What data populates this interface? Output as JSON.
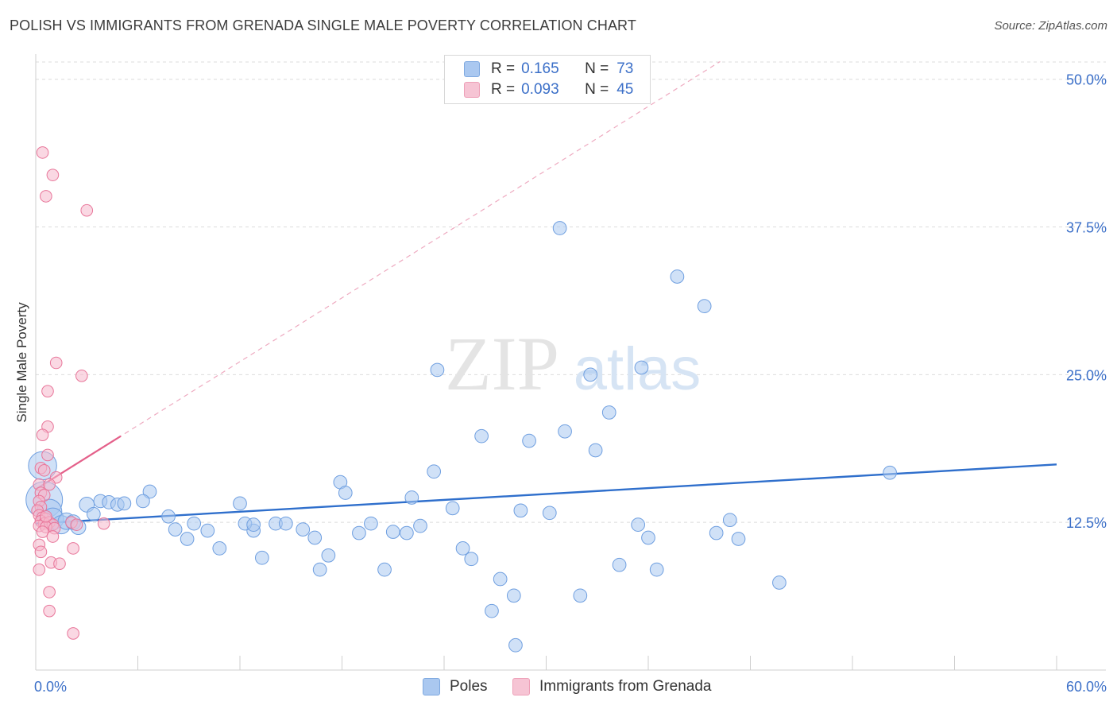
{
  "header": {
    "title": "POLISH VS IMMIGRANTS FROM GRENADA SINGLE MALE POVERTY CORRELATION CHART",
    "source": "Source: ZipAtlas.com"
  },
  "watermark": {
    "zip": "ZIP",
    "atlas": "atlas"
  },
  "legend_top": {
    "rows": [
      {
        "r_label": "R =",
        "r_value": "0.165",
        "n_label": "N =",
        "n_value": "73",
        "color": "#aac8f0"
      },
      {
        "r_label": "R =",
        "r_value": "0.093",
        "n_label": "N =",
        "n_value": "45",
        "color": "#f6b8cc"
      }
    ]
  },
  "legend_bottom": {
    "items": [
      {
        "label": "Poles",
        "color": "#aac8f0"
      },
      {
        "label": "Immigrants from Grenada",
        "color": "#f6b8cc"
      }
    ]
  },
  "chart_data": {
    "type": "scatter",
    "title": "POLISH VS IMMIGRANTS FROM GRENADA SINGLE MALE POVERTY CORRELATION CHART",
    "xlabel": "",
    "ylabel": "Single Male Poverty",
    "xlim": [
      0,
      60
    ],
    "ylim": [
      0,
      52
    ],
    "x_tick_labels": [
      "0.0%",
      "60.0%"
    ],
    "y_ticks": [
      12.5,
      25.0,
      37.5,
      50.0
    ],
    "y_tick_labels": [
      "12.5%",
      "25.0%",
      "37.5%",
      "50.0%"
    ],
    "grid": true,
    "legend_position": "top-center",
    "series": [
      {
        "name": "Poles",
        "color": "#6f9fe0",
        "fill": "#aac8f0",
        "r": 0.165,
        "n": 73,
        "trend": {
          "x": [
            0,
            60
          ],
          "y": [
            12.4,
            17.4
          ]
        },
        "points": [
          [
            0.4,
            17.3,
            1.7
          ],
          [
            0.5,
            14.4,
            2.2
          ],
          [
            0.8,
            13.4,
            1.5
          ],
          [
            1.0,
            12.8,
            1.3
          ],
          [
            1.5,
            12.3,
            1.1
          ],
          [
            1.8,
            12.6,
            1.0
          ],
          [
            2.2,
            12.5,
            0.9
          ],
          [
            2.5,
            12.1,
            0.9
          ],
          [
            3.0,
            14.0,
            0.9
          ],
          [
            3.4,
            13.2,
            0.8
          ],
          [
            3.8,
            14.3,
            0.8
          ],
          [
            4.3,
            14.2,
            0.8
          ],
          [
            4.8,
            14.0,
            0.8
          ],
          [
            5.2,
            14.1,
            0.8
          ],
          [
            6.7,
            15.1,
            0.8
          ],
          [
            6.3,
            14.3,
            0.8
          ],
          [
            7.8,
            13.0,
            0.8
          ],
          [
            8.2,
            11.9,
            0.8
          ],
          [
            8.9,
            11.1,
            0.8
          ],
          [
            9.3,
            12.4,
            0.8
          ],
          [
            10.1,
            11.8,
            0.8
          ],
          [
            10.8,
            10.3,
            0.8
          ],
          [
            12.0,
            14.1,
            0.8
          ],
          [
            12.8,
            11.8,
            0.8
          ],
          [
            14.1,
            12.4,
            0.8
          ],
          [
            12.3,
            12.4,
            0.8
          ],
          [
            12.8,
            12.3,
            0.8
          ],
          [
            13.3,
            9.5,
            0.8
          ],
          [
            14.7,
            12.4,
            0.8
          ],
          [
            15.7,
            11.9,
            0.8
          ],
          [
            16.4,
            11.2,
            0.8
          ],
          [
            16.7,
            8.5,
            0.8
          ],
          [
            17.2,
            9.7,
            0.8
          ],
          [
            17.9,
            15.9,
            0.8
          ],
          [
            18.2,
            15.0,
            0.8
          ],
          [
            19.0,
            11.6,
            0.8
          ],
          [
            19.7,
            12.4,
            0.8
          ],
          [
            20.5,
            8.5,
            0.8
          ],
          [
            21.0,
            11.7,
            0.8
          ],
          [
            22.1,
            14.6,
            0.8
          ],
          [
            22.6,
            12.2,
            0.8
          ],
          [
            23.6,
            25.4,
            0.8
          ],
          [
            23.4,
            16.8,
            0.8
          ],
          [
            24.5,
            13.7,
            0.8
          ],
          [
            25.1,
            10.3,
            0.8
          ],
          [
            25.6,
            9.4,
            0.8
          ],
          [
            26.2,
            19.8,
            0.8
          ],
          [
            26.8,
            5.0,
            0.8
          ],
          [
            27.3,
            7.7,
            0.8
          ],
          [
            28.1,
            6.3,
            0.8
          ],
          [
            28.5,
            13.5,
            0.8
          ],
          [
            29.0,
            19.4,
            0.8
          ],
          [
            30.2,
            13.3,
            0.8
          ],
          [
            30.8,
            37.4,
            0.8
          ],
          [
            31.1,
            20.2,
            0.8
          ],
          [
            32.0,
            6.3,
            0.8
          ],
          [
            32.6,
            25.0,
            0.8
          ],
          [
            32.9,
            18.6,
            0.8
          ],
          [
            34.3,
            8.9,
            0.8
          ],
          [
            33.7,
            21.8,
            0.8
          ],
          [
            35.6,
            25.6,
            0.8
          ],
          [
            35.4,
            12.3,
            0.8
          ],
          [
            36.0,
            11.2,
            0.8
          ],
          [
            36.5,
            8.5,
            0.8
          ],
          [
            37.7,
            33.3,
            0.8
          ],
          [
            39.3,
            30.8,
            0.8
          ],
          [
            40.0,
            11.6,
            0.8
          ],
          [
            40.8,
            12.7,
            0.8
          ],
          [
            41.3,
            11.1,
            0.8
          ],
          [
            43.7,
            7.4,
            0.8
          ],
          [
            50.2,
            16.7,
            0.8
          ],
          [
            28.2,
            2.1,
            0.8
          ],
          [
            21.8,
            11.6,
            0.8
          ]
        ]
      },
      {
        "name": "Immigrants from Grenada",
        "color": "#e8769a",
        "fill": "#f6b8cc",
        "r": 0.093,
        "n": 45,
        "trend": {
          "x": [
            0,
            5
          ],
          "y": [
            15.3,
            19.8
          ]
        },
        "trend_extended": {
          "x": [
            0,
            60
          ],
          "y": [
            15.3,
            69.3
          ]
        },
        "points": [
          [
            0.4,
            43.8,
            0.7
          ],
          [
            1.0,
            41.9,
            0.7
          ],
          [
            0.6,
            40.1,
            0.7
          ],
          [
            3.0,
            38.9,
            0.7
          ],
          [
            1.2,
            26.0,
            0.7
          ],
          [
            2.7,
            24.9,
            0.7
          ],
          [
            0.7,
            23.6,
            0.7
          ],
          [
            0.7,
            20.6,
            0.7
          ],
          [
            0.4,
            19.9,
            0.7
          ],
          [
            0.7,
            18.2,
            0.7
          ],
          [
            0.3,
            17.1,
            0.7
          ],
          [
            0.5,
            16.9,
            0.7
          ],
          [
            1.2,
            16.3,
            0.7
          ],
          [
            0.2,
            15.7,
            0.7
          ],
          [
            0.8,
            15.7,
            0.7
          ],
          [
            0.3,
            15.0,
            0.7
          ],
          [
            0.5,
            14.8,
            0.7
          ],
          [
            0.2,
            14.3,
            0.7
          ],
          [
            0.3,
            13.8,
            0.7
          ],
          [
            0.1,
            13.5,
            0.7
          ],
          [
            0.2,
            13.1,
            0.7
          ],
          [
            0.4,
            12.9,
            0.7
          ],
          [
            0.6,
            12.8,
            0.7
          ],
          [
            0.3,
            12.6,
            0.7
          ],
          [
            0.5,
            12.4,
            0.7
          ],
          [
            0.8,
            12.5,
            0.7
          ],
          [
            1.0,
            12.3,
            0.7
          ],
          [
            0.2,
            12.2,
            0.7
          ],
          [
            0.6,
            12.1,
            0.7
          ],
          [
            1.1,
            12.0,
            0.7
          ],
          [
            2.1,
            12.5,
            0.7
          ],
          [
            2.4,
            12.3,
            0.7
          ],
          [
            4.0,
            12.4,
            0.7
          ],
          [
            0.4,
            11.7,
            0.7
          ],
          [
            1.0,
            11.3,
            0.7
          ],
          [
            0.2,
            10.6,
            0.7
          ],
          [
            2.2,
            10.3,
            0.7
          ],
          [
            0.3,
            10.0,
            0.7
          ],
          [
            0.9,
            9.1,
            0.7
          ],
          [
            1.4,
            9.0,
            0.7
          ],
          [
            0.2,
            8.5,
            0.7
          ],
          [
            0.8,
            6.6,
            0.7
          ],
          [
            0.8,
            5.0,
            0.7
          ],
          [
            2.2,
            3.1,
            0.7
          ],
          [
            0.6,
            13.0,
            0.7
          ]
        ]
      }
    ]
  }
}
